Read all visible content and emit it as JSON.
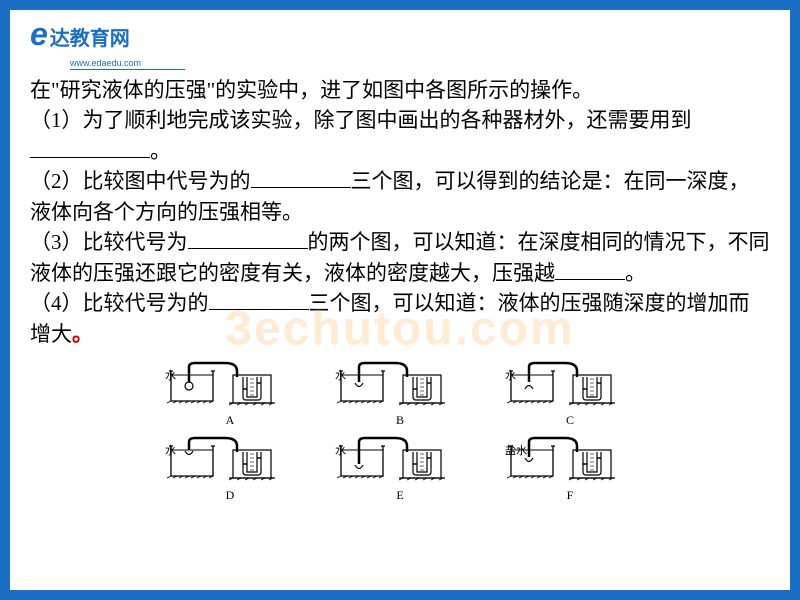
{
  "logo": {
    "e": "e",
    "brand": "达教育网",
    "url": "www.edaedu.com"
  },
  "content": {
    "intro": "在\"研究液体的压强\"的实验中，进了如图中各图所示的操作。",
    "q1_a": "（1）为了顺利地完成该实验，除了图中画出的各种器材外，还需要用到",
    "q1_b": "。",
    "q2_a": "（2）比较图中代号为的",
    "q2_b": "三个图，可以得到的结论是：在同一深度，液体向各个方向的压强相等。",
    "q3_a": "（3）比较代号为",
    "q3_b": "的两个图，可以知道：在深度相同的情况下，不同液体的压强还跟它的密度有关，液体的密度越大，压强越",
    "q3_c": "。",
    "q4_a": "（4）比较代号为的",
    "q4_b": "三个图，可以知道：液体的压强随深度的增加而增大"
  },
  "watermark": "3echutou.com",
  "diagrams": {
    "labels": [
      "A",
      "B",
      "C",
      "D",
      "E",
      "F"
    ],
    "liquids": [
      "水",
      "水",
      "水",
      "水",
      "水",
      "盐水"
    ],
    "colors": {
      "stroke": "#000000",
      "fill_none": "none"
    }
  }
}
